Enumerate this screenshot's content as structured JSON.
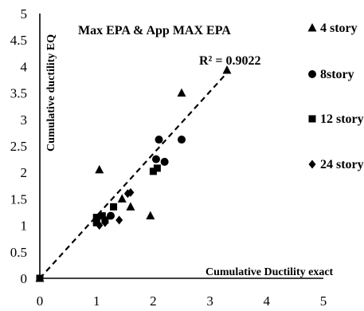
{
  "chart_data": {
    "type": "scatter",
    "title": "Max EPA & App MAX EPA",
    "xlabel": "Cumulative Ductility exact",
    "ylabel": "Cumulative ductility EQ",
    "xlim": [
      0,
      5
    ],
    "ylim": [
      0,
      5
    ],
    "xticks": [
      "0",
      "1",
      "2",
      "3",
      "4",
      "5"
    ],
    "yticks": [
      "0",
      "0.5",
      "1",
      "1.5",
      "2",
      "2.5",
      "3",
      "3.5",
      "4",
      "4.5",
      "5"
    ],
    "legend_position": "right",
    "annotation": "R² = 0.9022",
    "trendline": {
      "style": "dashed",
      "x": [
        0,
        3.3
      ],
      "y": [
        0,
        3.88
      ]
    },
    "series": [
      {
        "name": "4 story",
        "marker": "triangle",
        "points": [
          [
            0,
            0
          ],
          [
            1.05,
            2.05
          ],
          [
            1.45,
            1.5
          ],
          [
            1.6,
            1.35
          ],
          [
            1.95,
            1.18
          ],
          [
            2.5,
            3.5
          ],
          [
            3.3,
            3.93
          ]
        ]
      },
      {
        "name": "8story",
        "marker": "circle",
        "points": [
          [
            1.25,
            1.18
          ],
          [
            2.05,
            2.25
          ],
          [
            2.1,
            2.62
          ],
          [
            2.2,
            2.2
          ],
          [
            2.5,
            2.62
          ]
        ]
      },
      {
        "name": "12 story",
        "marker": "square",
        "points": [
          [
            0,
            0
          ],
          [
            1.0,
            1.05
          ],
          [
            1.0,
            1.15
          ],
          [
            1.1,
            1.18
          ],
          [
            1.15,
            1.1
          ],
          [
            1.3,
            1.35
          ],
          [
            2.0,
            2.02
          ],
          [
            2.07,
            2.08
          ]
        ]
      },
      {
        "name": "24 story",
        "marker": "diamond",
        "points": [
          [
            1.05,
            1.0
          ],
          [
            1.15,
            1.05
          ],
          [
            1.4,
            1.1
          ],
          [
            1.55,
            1.6
          ],
          [
            1.6,
            1.62
          ]
        ]
      }
    ]
  }
}
